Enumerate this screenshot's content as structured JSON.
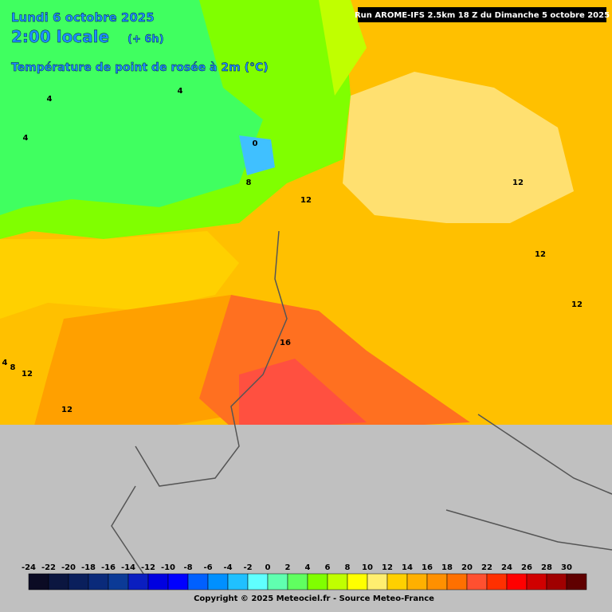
{
  "header": {
    "date": "Lundi 6 octobre 2025",
    "time": "2:00 locale",
    "offset": "(+ 6h)",
    "variable": "Température de point de rosée à 2m (°C)"
  },
  "run": "Run AROME-IFS 2.5km 18 Z du Dimanche 5 octobre 2025",
  "contour_labels": [
    "4",
    "4",
    "4",
    "0",
    "8",
    "12",
    "12",
    "12",
    "12",
    "16",
    "12",
    "4",
    "8",
    "12"
  ],
  "legend": {
    "labels": [
      -24,
      -22,
      -20,
      -18,
      -16,
      -14,
      -12,
      -10,
      -8,
      -6,
      -4,
      -2,
      0,
      2,
      4,
      6,
      8,
      10,
      12,
      14,
      16,
      18,
      20,
      22,
      24,
      26,
      28,
      30
    ],
    "colors": [
      "#0b0b24",
      "#0b1640",
      "#0a1f5c",
      "#0a2a7a",
      "#0b3a96",
      "#0a1ec0",
      "#0000e0",
      "#0000ff",
      "#0060ff",
      "#0090ff",
      "#20c0ff",
      "#60ffff",
      "#60ffb0",
      "#60ff60",
      "#80ff00",
      "#c0ff00",
      "#ffff00",
      "#ffee70",
      "#ffd000",
      "#ffb000",
      "#ff9000",
      "#ff7000",
      "#ff5030",
      "#ff3000",
      "#ff0000",
      "#d00000",
      "#a00000",
      "#600000"
    ]
  },
  "footer": {
    "copyright": "Copyright © 2025 Meteociel.fr - Source Meteo-France"
  }
}
